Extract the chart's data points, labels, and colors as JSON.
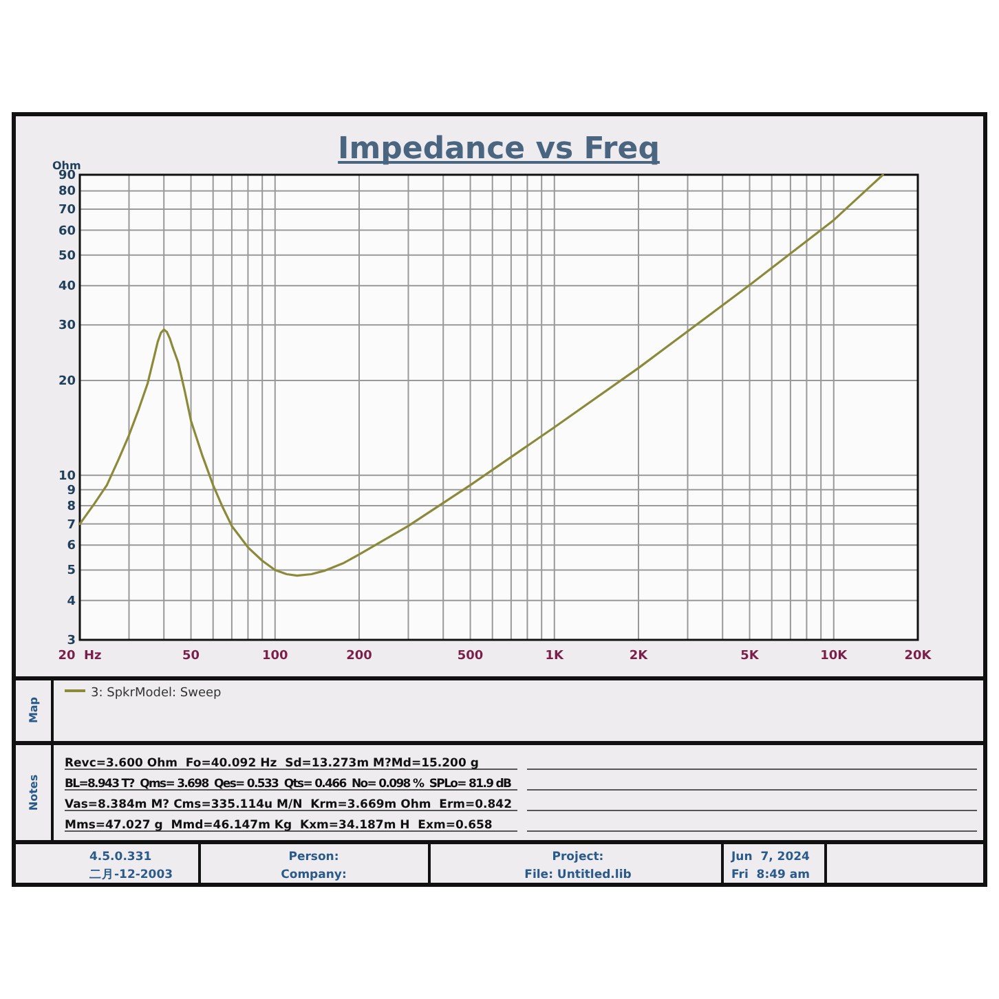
{
  "chart_data": {
    "type": "line",
    "title": "Impedance vs Freq",
    "ylabel": "Ohm",
    "log": "xy",
    "grid": true,
    "legend": "bottom",
    "marker": "none",
    "line_style": "solid",
    "xlim": [
      20,
      20000
    ],
    "ylim": [
      3,
      90
    ],
    "xticks": [
      {
        "value": 20,
        "label": "20  Hz"
      },
      {
        "value": 30,
        "label": null
      },
      {
        "value": 40,
        "label": null
      },
      50,
      {
        "value": 60,
        "label": null
      },
      {
        "value": 70,
        "label": null
      },
      {
        "value": 80,
        "label": null
      },
      {
        "value": 90,
        "label": null
      },
      100,
      200,
      {
        "value": 300,
        "label": null
      },
      {
        "value": 400,
        "label": null
      },
      500,
      {
        "value": 600,
        "label": null
      },
      {
        "value": 700,
        "label": null
      },
      {
        "value": 800,
        "label": null
      },
      {
        "value": 900,
        "label": null
      },
      {
        "value": 1000,
        "label": "1K"
      },
      {
        "value": 2000,
        "label": "2K"
      },
      {
        "value": 3000,
        "label": null
      },
      {
        "value": 4000,
        "label": null
      },
      {
        "value": 5000,
        "label": "5K"
      },
      {
        "value": 6000,
        "label": null
      },
      {
        "value": 7000,
        "label": null
      },
      {
        "value": 8000,
        "label": null
      },
      {
        "value": 9000,
        "label": null
      },
      {
        "value": 10000,
        "label": "10K"
      },
      {
        "value": 20000,
        "label": "20K"
      }
    ],
    "yticks": [
      3,
      4,
      5,
      6,
      7,
      8,
      9,
      10,
      20,
      30,
      40,
      50,
      60,
      70,
      80,
      90
    ],
    "series": [
      {
        "name": "3: SpkrModel: Sweep",
        "color": "#8a8a3a",
        "x": [
          20,
          22.5,
          25,
          27.5,
          30,
          32.5,
          35,
          37,
          38,
          39,
          40,
          41,
          42,
          43,
          45,
          47.5,
          50,
          55,
          60,
          65,
          70,
          80,
          90,
          100,
          110,
          120,
          135,
          150,
          175,
          200,
          300,
          500,
          1000,
          2000,
          5000,
          10000,
          15000
        ],
        "values": [
          7.0,
          8.1,
          9.3,
          11.2,
          13.4,
          16.2,
          19.6,
          24.0,
          26.5,
          28.3,
          29.0,
          28.5,
          27.2,
          25.5,
          22.8,
          18.5,
          14.9,
          11.5,
          9.3,
          7.9,
          6.9,
          5.9,
          5.35,
          5.0,
          4.85,
          4.8,
          4.85,
          4.97,
          5.25,
          5.6,
          6.9,
          9.3,
          14.2,
          21.9,
          40.2,
          64.6,
          90
        ]
      }
    ],
    "annotations": [
      "Revc=3.600 Ohm  Fo=40.092 Hz  Sd=13.273m M?Md=15.200 g",
      "BL=8.943 T?  Qms= 3.698  Qes= 0.533  Qts= 0.466  No= 0.098 %  SPLo= 81.9 dB",
      "Vas=8.384m M? Cms=335.114u M/N  Krm=3.669m Ohm  Erm=0.842",
      "Mms=47.027 g  Mmd=46.147m Kg  Kxm=34.187m H  Exm=0.658",
      "Map",
      "Notes",
      "4.5.0.331",
      "二月-12-2003",
      "Person:",
      "Company:",
      "Project:",
      "File: Untitled.lib",
      "Jun  7, 2024",
      "Fri  8:49 am"
    ]
  }
}
